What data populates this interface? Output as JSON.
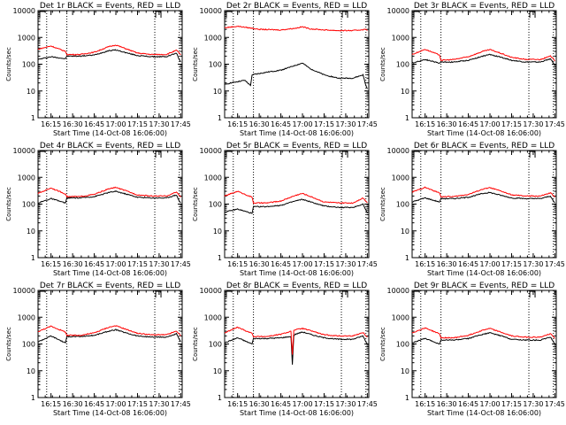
{
  "colors": {
    "events": "#000000",
    "lld": "#ff0000",
    "axes": "#000000",
    "background": "#ffffff"
  },
  "chart_data": [
    {
      "type": "line",
      "title": "Det 1r BLACK = Events, RED = LLD",
      "xlabel": "Start Time (14-Oct-08 16:06:00)",
      "ylabel": "Counts/sec",
      "xlim": [
        "16:06",
        "17:46"
      ],
      "ylim": [
        1,
        10000
      ],
      "yscale": "log",
      "xticks": [
        "16:15",
        "16:30",
        "16:45",
        "17:00",
        "17:15",
        "17:30",
        "17:45"
      ],
      "yticks": [
        "1",
        "10",
        "100",
        "1000",
        "10000"
      ],
      "vlines": [
        "16:12",
        "16:26",
        "17:27",
        "17:44"
      ],
      "series": [
        {
          "name": "Events",
          "color": "#000000",
          "x": [
            "16:06",
            "16:15",
            "16:25",
            "16:26",
            "16:35",
            "16:45",
            "16:55",
            "17:00",
            "17:08",
            "17:15",
            "17:25",
            "17:35",
            "17:42",
            "17:44",
            "17:45"
          ],
          "values": [
            150,
            190,
            160,
            200,
            200,
            220,
            320,
            340,
            260,
            210,
            190,
            190,
            260,
            150,
            120
          ]
        },
        {
          "name": "LLD",
          "color": "#ff0000",
          "x": [
            "16:06",
            "16:15",
            "16:25",
            "16:26",
            "16:35",
            "16:45",
            "16:55",
            "17:00",
            "17:08",
            "17:15",
            "17:25",
            "17:35",
            "17:42",
            "17:44",
            "17:45"
          ],
          "values": [
            360,
            480,
            300,
            230,
            230,
            280,
            450,
            520,
            360,
            260,
            230,
            230,
            330,
            260,
            220
          ]
        }
      ]
    },
    {
      "type": "line",
      "title": "Det 2r BLACK = Events, RED = LLD",
      "xlabel": "Start Time (14-Oct-08 16:06:00)",
      "ylabel": "Counts/sec",
      "xlim": [
        "16:06",
        "17:46"
      ],
      "ylim": [
        1,
        10000
      ],
      "yscale": "log",
      "xticks": [
        "16:15",
        "16:30",
        "16:45",
        "17:00",
        "17:15",
        "17:30",
        "17:45"
      ],
      "yticks": [
        "1",
        "10",
        "100",
        "1000",
        "10000"
      ],
      "vlines": [
        "16:12",
        "16:26",
        "17:27",
        "17:44"
      ],
      "series": [
        {
          "name": "Events",
          "color": "#000000",
          "x": [
            "16:06",
            "16:10",
            "16:20",
            "16:24",
            "16:25",
            "16:35",
            "16:45",
            "16:55",
            "17:00",
            "17:05",
            "17:15",
            "17:25",
            "17:35",
            "17:42",
            "17:44",
            "17:45"
          ],
          "values": [
            17,
            20,
            25,
            16,
            40,
            50,
            60,
            90,
            110,
            70,
            40,
            30,
            30,
            40,
            16,
            12
          ]
        },
        {
          "name": "LLD",
          "color": "#ff0000",
          "x": [
            "16:06",
            "16:15",
            "16:25",
            "16:30",
            "16:45",
            "16:55",
            "17:00",
            "17:05",
            "17:15",
            "17:25",
            "17:35",
            "17:44",
            "17:45"
          ],
          "values": [
            2300,
            2600,
            2200,
            2000,
            1900,
            2200,
            2500,
            2100,
            1900,
            1800,
            1800,
            2000,
            1800
          ]
        }
      ]
    },
    {
      "type": "line",
      "title": "Det 3r BLACK = Events, RED = LLD",
      "xlabel": "Start Time (14-Oct-08 16:06:00)",
      "ylabel": "Counts/sec",
      "xlim": [
        "16:06",
        "17:46"
      ],
      "ylim": [
        1,
        10000
      ],
      "yscale": "log",
      "xticks": [
        "16:15",
        "16:30",
        "16:45",
        "17:00",
        "17:15",
        "17:30",
        "17:45"
      ],
      "yticks": [
        "1",
        "10",
        "100",
        "1000",
        "10000"
      ],
      "vlines": [
        "16:12",
        "16:26",
        "17:27",
        "17:44"
      ],
      "series": [
        {
          "name": "Events",
          "color": "#000000",
          "x": [
            "16:06",
            "16:15",
            "16:25",
            "16:26",
            "16:35",
            "16:45",
            "16:55",
            "17:00",
            "17:08",
            "17:15",
            "17:25",
            "17:35",
            "17:42",
            "17:44",
            "17:45"
          ],
          "values": [
            110,
            150,
            110,
            120,
            120,
            140,
            200,
            230,
            180,
            140,
            120,
            120,
            160,
            110,
            90
          ]
        },
        {
          "name": "LLD",
          "color": "#ff0000",
          "x": [
            "16:06",
            "16:15",
            "16:25",
            "16:26",
            "16:35",
            "16:45",
            "16:55",
            "17:00",
            "17:08",
            "17:15",
            "17:25",
            "17:35",
            "17:42",
            "17:44",
            "17:45"
          ],
          "values": [
            230,
            360,
            220,
            140,
            150,
            190,
            300,
            350,
            250,
            180,
            150,
            150,
            200,
            160,
            130
          ]
        }
      ]
    },
    {
      "type": "line",
      "title": "Det 4r BLACK = Events, RED = LLD",
      "xlabel": "Start Time (14-Oct-08 16:06:00)",
      "ylabel": "Counts/sec",
      "xlim": [
        "16:06",
        "17:46"
      ],
      "ylim": [
        1,
        10000
      ],
      "yscale": "log",
      "xticks": [
        "16:15",
        "16:30",
        "16:45",
        "17:00",
        "17:15",
        "17:30",
        "17:45"
      ],
      "yticks": [
        "1",
        "10",
        "100",
        "1000",
        "10000"
      ],
      "vlines": [
        "16:12",
        "16:26",
        "17:27",
        "17:44"
      ],
      "series": [
        {
          "name": "Events",
          "color": "#000000",
          "x": [
            "16:06",
            "16:15",
            "16:25",
            "16:26",
            "16:35",
            "16:45",
            "16:55",
            "17:00",
            "17:08",
            "17:15",
            "17:25",
            "17:35",
            "17:42",
            "17:44",
            "17:45"
          ],
          "values": [
            110,
            160,
            110,
            170,
            170,
            190,
            270,
            300,
            230,
            180,
            170,
            170,
            220,
            130,
            110
          ]
        },
        {
          "name": "LLD",
          "color": "#ff0000",
          "x": [
            "16:06",
            "16:15",
            "16:25",
            "16:26",
            "16:35",
            "16:45",
            "16:55",
            "17:00",
            "17:08",
            "17:15",
            "17:25",
            "17:35",
            "17:42",
            "17:44",
            "17:45"
          ],
          "values": [
            250,
            400,
            240,
            190,
            190,
            230,
            370,
            420,
            300,
            220,
            200,
            200,
            280,
            220,
            180
          ]
        }
      ]
    },
    {
      "type": "line",
      "title": "Det 5r BLACK = Events, RED = LLD",
      "xlabel": "Start Time (14-Oct-08 16:06:00)",
      "ylabel": "Counts/sec",
      "xlim": [
        "16:06",
        "17:46"
      ],
      "ylim": [
        1,
        10000
      ],
      "yscale": "log",
      "xticks": [
        "16:15",
        "16:30",
        "16:45",
        "17:00",
        "17:15",
        "17:30",
        "17:45"
      ],
      "yticks": [
        "1",
        "10",
        "100",
        "1000",
        "10000"
      ],
      "vlines": [
        "16:12",
        "16:26",
        "17:27",
        "17:44"
      ],
      "series": [
        {
          "name": "Events",
          "color": "#000000",
          "x": [
            "16:06",
            "16:15",
            "16:25",
            "16:26",
            "16:35",
            "16:45",
            "16:55",
            "17:00",
            "17:08",
            "17:15",
            "17:25",
            "17:35",
            "17:42",
            "17:44",
            "17:45"
          ],
          "values": [
            50,
            65,
            45,
            80,
            80,
            90,
            130,
            150,
            110,
            85,
            75,
            75,
            100,
            60,
            45
          ]
        },
        {
          "name": "LLD",
          "color": "#ff0000",
          "x": [
            "16:06",
            "16:15",
            "16:25",
            "16:26",
            "16:35",
            "16:45",
            "16:55",
            "17:00",
            "17:08",
            "17:15",
            "17:25",
            "17:35",
            "17:42",
            "17:44",
            "17:45"
          ],
          "values": [
            200,
            300,
            180,
            110,
            110,
            130,
            210,
            250,
            170,
            120,
            110,
            110,
            170,
            130,
            110
          ]
        }
      ]
    },
    {
      "type": "line",
      "title": "Det 6r BLACK = Events, RED = LLD",
      "xlabel": "Start Time (14-Oct-08 16:06:00)",
      "ylabel": "Counts/sec",
      "xlim": [
        "16:06",
        "17:46"
      ],
      "ylim": [
        1,
        10000
      ],
      "yscale": "log",
      "xticks": [
        "16:15",
        "16:30",
        "16:45",
        "17:00",
        "17:15",
        "17:30",
        "17:45"
      ],
      "yticks": [
        "1",
        "10",
        "100",
        "1000",
        "10000"
      ],
      "vlines": [
        "16:12",
        "16:26",
        "17:27",
        "17:44"
      ],
      "series": [
        {
          "name": "Events",
          "color": "#000000",
          "x": [
            "16:06",
            "16:15",
            "16:25",
            "16:26",
            "16:35",
            "16:45",
            "16:55",
            "17:00",
            "17:08",
            "17:15",
            "17:25",
            "17:35",
            "17:42",
            "17:44",
            "17:45"
          ],
          "values": [
            120,
            170,
            120,
            160,
            160,
            180,
            250,
            270,
            210,
            170,
            160,
            160,
            200,
            130,
            110
          ]
        },
        {
          "name": "LLD",
          "color": "#ff0000",
          "x": [
            "16:06",
            "16:15",
            "16:25",
            "16:26",
            "16:35",
            "16:45",
            "16:55",
            "17:00",
            "17:08",
            "17:15",
            "17:25",
            "17:35",
            "17:42",
            "17:44",
            "17:45"
          ],
          "values": [
            280,
            420,
            260,
            190,
            190,
            230,
            360,
            410,
            300,
            220,
            200,
            200,
            260,
            210,
            180
          ]
        }
      ]
    },
    {
      "type": "line",
      "title": "Det 7r BLACK = Events, RED = LLD",
      "xlabel": "Start Time (14-Oct-08 16:06:00)",
      "ylabel": "Counts/sec",
      "xlim": [
        "16:06",
        "17:46"
      ],
      "ylim": [
        1,
        10000
      ],
      "yscale": "log",
      "xticks": [
        "16:15",
        "16:30",
        "16:45",
        "17:00",
        "17:15",
        "17:30",
        "17:45"
      ],
      "yticks": [
        "1",
        "10",
        "100",
        "1000",
        "10000"
      ],
      "vlines": [
        "16:12",
        "16:26",
        "17:27",
        "17:44"
      ],
      "series": [
        {
          "name": "Events",
          "color": "#000000",
          "x": [
            "16:06",
            "16:15",
            "16:25",
            "16:26",
            "16:35",
            "16:45",
            "16:55",
            "17:00",
            "17:08",
            "17:15",
            "17:25",
            "17:35",
            "17:42",
            "17:44",
            "17:45"
          ],
          "values": [
            120,
            200,
            110,
            190,
            190,
            210,
            300,
            340,
            250,
            200,
            180,
            180,
            240,
            150,
            120
          ]
        },
        {
          "name": "LLD",
          "color": "#ff0000",
          "x": [
            "16:06",
            "16:15",
            "16:25",
            "16:26",
            "16:35",
            "16:45",
            "16:55",
            "17:00",
            "17:08",
            "17:15",
            "17:25",
            "17:35",
            "17:42",
            "17:44",
            "17:45"
          ],
          "values": [
            290,
            460,
            280,
            210,
            210,
            260,
            420,
            480,
            340,
            250,
            220,
            220,
            300,
            240,
            200
          ]
        }
      ]
    },
    {
      "type": "line",
      "title": "Det 8r BLACK = Events, RED = LLD",
      "xlabel": "Start Time (14-Oct-08 16:06:00)",
      "ylabel": "Counts/sec",
      "xlim": [
        "16:06",
        "17:46"
      ],
      "ylim": [
        1,
        10000
      ],
      "yscale": "log",
      "xticks": [
        "16:15",
        "16:30",
        "16:45",
        "17:00",
        "17:15",
        "17:30",
        "17:45"
      ],
      "yticks": [
        "1",
        "10",
        "100",
        "1000",
        "10000"
      ],
      "vlines": [
        "16:12",
        "16:26",
        "17:27",
        "17:44"
      ],
      "series": [
        {
          "name": "Events",
          "color": "#000000",
          "x": [
            "16:06",
            "16:15",
            "16:25",
            "16:26",
            "16:35",
            "16:45",
            "16:52",
            "16:53",
            "16:54",
            "16:55",
            "17:00",
            "17:08",
            "17:15",
            "17:25",
            "17:35",
            "17:42",
            "17:44",
            "17:45"
          ],
          "values": [
            110,
            170,
            100,
            160,
            160,
            170,
            190,
            17,
            200,
            230,
            280,
            210,
            170,
            150,
            150,
            200,
            120,
            100
          ]
        },
        {
          "name": "LLD",
          "color": "#ff0000",
          "x": [
            "16:06",
            "16:15",
            "16:25",
            "16:26",
            "16:35",
            "16:45",
            "16:52",
            "16:53",
            "16:54",
            "16:55",
            "17:00",
            "17:08",
            "17:15",
            "17:25",
            "17:35",
            "17:42",
            "17:44",
            "17:45"
          ],
          "values": [
            260,
            420,
            250,
            190,
            190,
            230,
            300,
            40,
            320,
            340,
            380,
            290,
            220,
            200,
            200,
            270,
            200,
            180
          ]
        }
      ]
    },
    {
      "type": "line",
      "title": "Det 9r BLACK = Events, RED = LLD",
      "xlabel": "Start Time (14-Oct-08 16:06:00)",
      "ylabel": "Counts/sec",
      "xlim": [
        "16:06",
        "17:46"
      ],
      "ylim": [
        1,
        10000
      ],
      "yscale": "log",
      "xticks": [
        "16:15",
        "16:30",
        "16:45",
        "17:00",
        "17:15",
        "17:30",
        "17:45"
      ],
      "yticks": [
        "1",
        "10",
        "100",
        "1000",
        "10000"
      ],
      "vlines": [
        "16:12",
        "16:26",
        "17:27",
        "17:44"
      ],
      "series": [
        {
          "name": "Events",
          "color": "#000000",
          "x": [
            "16:06",
            "16:15",
            "16:25",
            "16:26",
            "16:35",
            "16:45",
            "16:55",
            "17:00",
            "17:08",
            "17:15",
            "17:25",
            "17:35",
            "17:42",
            "17:44",
            "17:45"
          ],
          "values": [
            110,
            160,
            100,
            140,
            140,
            160,
            230,
            260,
            200,
            150,
            140,
            140,
            180,
            120,
            100
          ]
        },
        {
          "name": "LLD",
          "color": "#ff0000",
          "x": [
            "16:06",
            "16:15",
            "16:25",
            "16:26",
            "16:35",
            "16:45",
            "16:55",
            "17:00",
            "17:08",
            "17:15",
            "17:25",
            "17:35",
            "17:42",
            "17:44",
            "17:45"
          ],
          "values": [
            260,
            400,
            240,
            170,
            170,
            210,
            330,
            380,
            270,
            200,
            180,
            180,
            240,
            190,
            160
          ]
        }
      ]
    }
  ]
}
